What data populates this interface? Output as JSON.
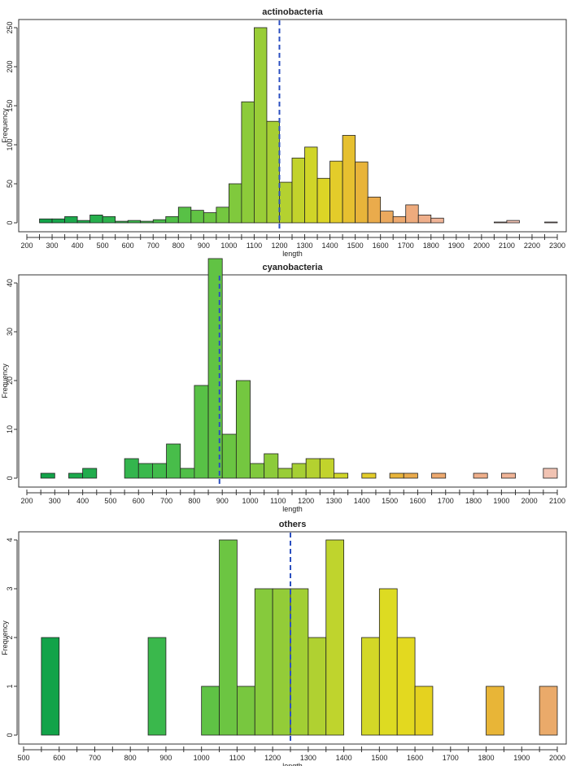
{
  "chart_data": [
    {
      "type": "bar",
      "title": "actinobacteria",
      "xlabel": "length",
      "ylabel": "Frequency",
      "bin_width": 50,
      "xlim": [
        200,
        2300
      ],
      "ylim": [
        0,
        250
      ],
      "x_ticks": [
        200,
        300,
        400,
        500,
        600,
        700,
        800,
        900,
        1000,
        1100,
        1200,
        1300,
        1400,
        1500,
        1600,
        1700,
        1800,
        1900,
        2000,
        2100,
        2200,
        2300
      ],
      "y_ticks": [
        0,
        50,
        100,
        150,
        200,
        250
      ],
      "median_line": 1200,
      "bins": [
        {
          "start": 250,
          "count": 5,
          "color": "#12a349"
        },
        {
          "start": 300,
          "count": 5,
          "color": "#17a64b"
        },
        {
          "start": 350,
          "count": 8,
          "color": "#1ca94c"
        },
        {
          "start": 400,
          "count": 3,
          "color": "#21ac4d"
        },
        {
          "start": 450,
          "count": 10,
          "color": "#27af4d"
        },
        {
          "start": 500,
          "count": 8,
          "color": "#2db24d"
        },
        {
          "start": 550,
          "count": 2,
          "color": "#33b54d"
        },
        {
          "start": 600,
          "count": 3,
          "color": "#3ab84c"
        },
        {
          "start": 650,
          "count": 2,
          "color": "#41bb4b"
        },
        {
          "start": 700,
          "count": 4,
          "color": "#48bd4a"
        },
        {
          "start": 750,
          "count": 8,
          "color": "#50bf48"
        },
        {
          "start": 800,
          "count": 20,
          "color": "#58c146"
        },
        {
          "start": 850,
          "count": 16,
          "color": "#61c344"
        },
        {
          "start": 900,
          "count": 13,
          "color": "#6ac542"
        },
        {
          "start": 950,
          "count": 20,
          "color": "#74c740"
        },
        {
          "start": 1000,
          "count": 50,
          "color": "#80c93d"
        },
        {
          "start": 1050,
          "count": 155,
          "color": "#8ccb3a"
        },
        {
          "start": 1100,
          "count": 250,
          "color": "#99cd37"
        },
        {
          "start": 1150,
          "count": 130,
          "color": "#a6cf34"
        },
        {
          "start": 1200,
          "count": 52,
          "color": "#b4d130"
        },
        {
          "start": 1250,
          "count": 83,
          "color": "#c2d32c"
        },
        {
          "start": 1300,
          "count": 97,
          "color": "#d0d528"
        },
        {
          "start": 1350,
          "count": 57,
          "color": "#dcd526"
        },
        {
          "start": 1400,
          "count": 79,
          "color": "#e3cc2a"
        },
        {
          "start": 1450,
          "count": 112,
          "color": "#e6c030"
        },
        {
          "start": 1500,
          "count": 78,
          "color": "#e8b43a"
        },
        {
          "start": 1550,
          "count": 33,
          "color": "#eaab4c"
        },
        {
          "start": 1600,
          "count": 15,
          "color": "#eba95e"
        },
        {
          "start": 1650,
          "count": 8,
          "color": "#eda96f"
        },
        {
          "start": 1700,
          "count": 23,
          "color": "#eeab7d"
        },
        {
          "start": 1750,
          "count": 10,
          "color": "#efaf8b"
        },
        {
          "start": 1800,
          "count": 6,
          "color": "#f0b497"
        },
        {
          "start": 2050,
          "count": 1,
          "color": "#f1bba5"
        },
        {
          "start": 2100,
          "count": 3,
          "color": "#f1c3b3"
        },
        {
          "start": 2250,
          "count": 1,
          "color": "#f1c9bd"
        }
      ]
    },
    {
      "type": "bar",
      "title": "cyanobacteria",
      "xlabel": "length",
      "ylabel": "Frequency",
      "bin_width": 50,
      "xlim": [
        200,
        2100
      ],
      "ylim": [
        0,
        40
      ],
      "x_ticks": [
        200,
        300,
        400,
        500,
        600,
        700,
        800,
        900,
        1000,
        1100,
        1200,
        1300,
        1400,
        1500,
        1600,
        1700,
        1800,
        1900,
        2000,
        2100
      ],
      "y_ticks": [
        0,
        10,
        20,
        30,
        40
      ],
      "median_line": 890,
      "bins": [
        {
          "start": 250,
          "count": 1,
          "color": "#12a349"
        },
        {
          "start": 350,
          "count": 1,
          "color": "#1ca94c"
        },
        {
          "start": 400,
          "count": 2,
          "color": "#21ac4d"
        },
        {
          "start": 550,
          "count": 4,
          "color": "#33b54d"
        },
        {
          "start": 600,
          "count": 3,
          "color": "#3ab84c"
        },
        {
          "start": 650,
          "count": 3,
          "color": "#41bb4b"
        },
        {
          "start": 700,
          "count": 7,
          "color": "#48bd4a"
        },
        {
          "start": 750,
          "count": 2,
          "color": "#50bf48"
        },
        {
          "start": 800,
          "count": 19,
          "color": "#58c146"
        },
        {
          "start": 850,
          "count": 45,
          "color": "#61c344"
        },
        {
          "start": 900,
          "count": 9,
          "color": "#6ac542"
        },
        {
          "start": 950,
          "count": 20,
          "color": "#74c740"
        },
        {
          "start": 1000,
          "count": 3,
          "color": "#80c93d"
        },
        {
          "start": 1050,
          "count": 5,
          "color": "#8ccb3a"
        },
        {
          "start": 1100,
          "count": 2,
          "color": "#99cd37"
        },
        {
          "start": 1150,
          "count": 3,
          "color": "#a6cf34"
        },
        {
          "start": 1200,
          "count": 4,
          "color": "#b4d130"
        },
        {
          "start": 1250,
          "count": 4,
          "color": "#c2d32c"
        },
        {
          "start": 1300,
          "count": 1,
          "color": "#d0d528"
        },
        {
          "start": 1400,
          "count": 1,
          "color": "#e3cc2a"
        },
        {
          "start": 1500,
          "count": 1,
          "color": "#e8b43a"
        },
        {
          "start": 1550,
          "count": 1,
          "color": "#eaab4c"
        },
        {
          "start": 1650,
          "count": 1,
          "color": "#eda96f"
        },
        {
          "start": 1800,
          "count": 1,
          "color": "#efaf8b"
        },
        {
          "start": 1900,
          "count": 1,
          "color": "#f0b497"
        },
        {
          "start": 2050,
          "count": 2,
          "color": "#f1c3b3"
        }
      ]
    },
    {
      "type": "bar",
      "title": "others",
      "xlabel": "length",
      "ylabel": "Frequency",
      "bin_width": 50,
      "xlim": [
        500,
        2000
      ],
      "ylim": [
        0,
        4
      ],
      "x_ticks": [
        500,
        600,
        700,
        800,
        900,
        1000,
        1100,
        1200,
        1300,
        1400,
        1500,
        1600,
        1700,
        1800,
        1900,
        2000
      ],
      "y_ticks": [
        0,
        1,
        2,
        3,
        4
      ],
      "median_line": 1250,
      "bins": [
        {
          "start": 550,
          "count": 2,
          "color": "#12a349"
        },
        {
          "start": 850,
          "count": 2,
          "color": "#3ab84c"
        },
        {
          "start": 1000,
          "count": 1,
          "color": "#5fc245"
        },
        {
          "start": 1050,
          "count": 4,
          "color": "#6cc542"
        },
        {
          "start": 1100,
          "count": 1,
          "color": "#78c73f"
        },
        {
          "start": 1150,
          "count": 3,
          "color": "#86ca3c"
        },
        {
          "start": 1200,
          "count": 3,
          "color": "#93cc38"
        },
        {
          "start": 1250,
          "count": 3,
          "color": "#a2cf34"
        },
        {
          "start": 1300,
          "count": 2,
          "color": "#b0d131"
        },
        {
          "start": 1350,
          "count": 4,
          "color": "#bfd42d"
        },
        {
          "start": 1450,
          "count": 2,
          "color": "#d3d827"
        },
        {
          "start": 1500,
          "count": 3,
          "color": "#dddb22"
        },
        {
          "start": 1550,
          "count": 2,
          "color": "#e3d91f"
        },
        {
          "start": 1600,
          "count": 1,
          "color": "#e5d21f"
        },
        {
          "start": 1800,
          "count": 1,
          "color": "#e8b537"
        },
        {
          "start": 1950,
          "count": 1,
          "color": "#eaaa6a"
        }
      ]
    }
  ]
}
